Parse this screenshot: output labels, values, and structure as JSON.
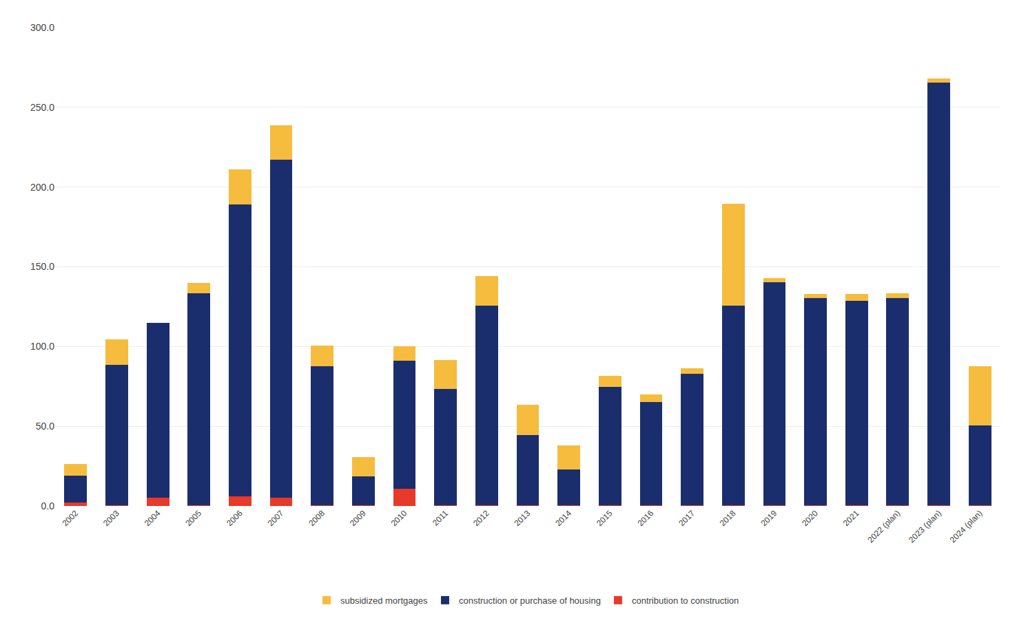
{
  "chart_data": {
    "type": "bar",
    "stacked": true,
    "categories": [
      "2002",
      "2003",
      "2004",
      "2005",
      "2006",
      "2007",
      "2008",
      "2009",
      "2010",
      "2011",
      "2012",
      "2013",
      "2014",
      "2015",
      "2016",
      "2017",
      "2018",
      "2019",
      "2020",
      "2021",
      "2022 (plan)",
      "2023 (plan)",
      "2024 (plan)"
    ],
    "series": [
      {
        "name": "contribution to construction",
        "color": "#e8392a",
        "values": [
          2.0,
          0.5,
          5.0,
          0.5,
          6.0,
          5.0,
          0.5,
          0.5,
          11.0,
          0.5,
          0.5,
          0.5,
          0.5,
          0.5,
          0.5,
          0.5,
          0.5,
          0.5,
          0.5,
          0.5,
          0.5,
          0.5,
          0.5
        ]
      },
      {
        "name": "construction or purchase of housing",
        "color": "#1a2e6e",
        "values": [
          17.0,
          88.0,
          110.0,
          133.0,
          183.0,
          212.0,
          87.0,
          18.0,
          80.0,
          73.0,
          125.0,
          44.0,
          22.5,
          74.0,
          64.5,
          82.5,
          125.0,
          140.0,
          130.0,
          128.0,
          130.0,
          265.0,
          50.0
        ]
      },
      {
        "name": "subsidized mortgages",
        "color": "#f5bc3e",
        "values": [
          7.5,
          16.0,
          0.0,
          6.5,
          22.0,
          21.5,
          13.0,
          12.0,
          9.0,
          18.0,
          18.5,
          19.0,
          15.0,
          7.0,
          5.0,
          3.5,
          64.0,
          2.5,
          2.5,
          4.5,
          3.0,
          2.5,
          37.0
        ]
      }
    ],
    "ylim": [
      0,
      300
    ],
    "yticks": [
      {
        "value": 0,
        "label": "0.0"
      },
      {
        "value": 50,
        "label": "50.0"
      },
      {
        "value": 100,
        "label": "100.0"
      },
      {
        "value": 150,
        "label": "150.0"
      },
      {
        "value": 200,
        "label": "200.0"
      },
      {
        "value": 250,
        "label": "250.0"
      },
      {
        "value": 300,
        "label": "300.0"
      }
    ],
    "grid": true,
    "legend": "bottom"
  }
}
